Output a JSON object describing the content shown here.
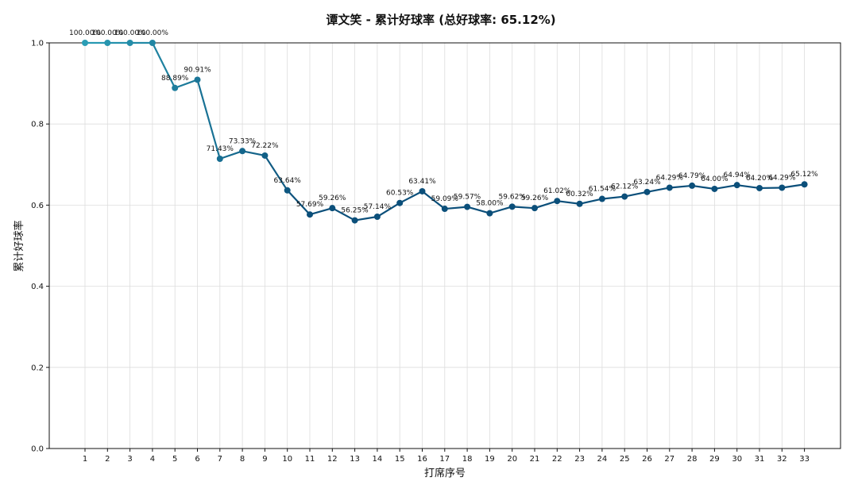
{
  "chart_data": {
    "type": "line",
    "title": "谭文笑 - 累计好球率 (总好球率: 65.12%)",
    "xlabel": "打席序号",
    "ylabel": "累计好球率",
    "ylim": [
      0,
      1.0
    ],
    "yticks": [
      "0.0",
      "0.2",
      "0.4",
      "0.6",
      "0.8",
      "1.0"
    ],
    "grid": true,
    "x": [
      1,
      2,
      3,
      4,
      5,
      6,
      7,
      8,
      9,
      10,
      11,
      12,
      13,
      14,
      15,
      16,
      17,
      18,
      19,
      20,
      21,
      22,
      23,
      24,
      25,
      26,
      27,
      28,
      29,
      30,
      31,
      32,
      33
    ],
    "series": [
      {
        "values": [
          1.0,
          1.0,
          1.0,
          1.0,
          0.8889,
          0.9091,
          0.7143,
          0.7333,
          0.7222,
          0.6364,
          0.5769,
          0.5926,
          0.5625,
          0.5714,
          0.6053,
          0.6341,
          0.5909,
          0.5957,
          0.58,
          0.5962,
          0.5926,
          0.6102,
          0.6032,
          0.6154,
          0.6212,
          0.6324,
          0.6429,
          0.6479,
          0.64,
          0.6494,
          0.642,
          0.6429,
          0.6512
        ],
        "labels": [
          "100.00%",
          "100.00%",
          "100.00%",
          "100.00%",
          "88.89%",
          "90.91%",
          "71.43%",
          "73.33%",
          "72.22%",
          "63.64%",
          "57.69%",
          "59.26%",
          "56.25%",
          "57.14%",
          "60.53%",
          "63.41%",
          "59.09%",
          "59.57%",
          "58.00%",
          "59.62%",
          "59.26%",
          "61.02%",
          "60.32%",
          "61.54%",
          "62.12%",
          "63.24%",
          "64.29%",
          "64.79%",
          "64.00%",
          "64.94%",
          "64.20%",
          "64.29%",
          "65.12%"
        ]
      }
    ],
    "colors": {
      "start": "#2a9db5",
      "end": "#0b4f7a"
    }
  }
}
